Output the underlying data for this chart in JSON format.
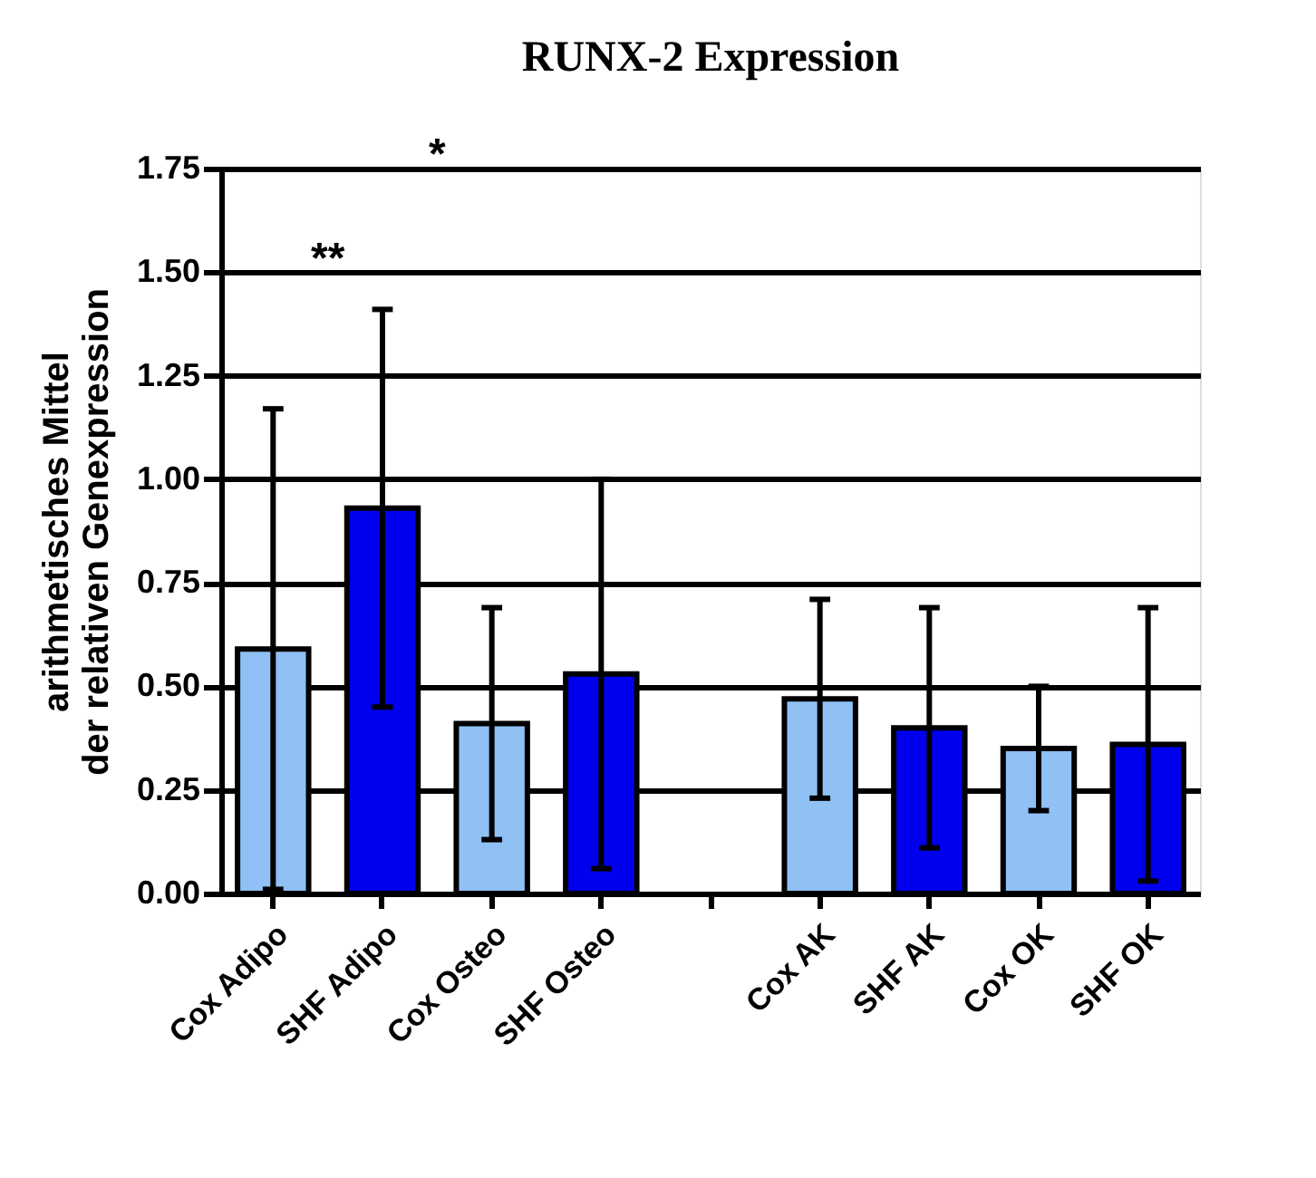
{
  "chart_data": {
    "type": "bar",
    "title": "RUNX-2 Expression",
    "ylabel": "arithmetisches Mittel\nder relativen Genexpression",
    "categories": [
      "Cox Adipo",
      "SHF Adipo",
      "Cox Osteo",
      "SHF Osteo",
      null,
      "Cox AK",
      "SHF AK",
      "Cox OK",
      "SHF OK"
    ],
    "values": [
      0.59,
      0.93,
      0.41,
      0.53,
      null,
      0.47,
      0.4,
      0.35,
      0.36
    ],
    "errors": [
      0.58,
      0.48,
      0.28,
      0.47,
      null,
      0.24,
      0.29,
      0.15,
      0.33
    ],
    "colors": [
      "#90c0f4",
      "#0000ee",
      "#90c0f4",
      "#0000ee",
      "#ffffff",
      "#90c0f4",
      "#0000ee",
      "#90c0f4",
      "#0000ee"
    ],
    "ylim": [
      0,
      1.75
    ],
    "yticks": [
      {
        "value": 0,
        "label": "0.00"
      },
      0.25,
      {
        "value": 0.5,
        "label": "0.50"
      },
      0.75,
      {
        "value": 1,
        "label": "1.00"
      },
      1.25,
      {
        "value": 1.5,
        "label": "1.50"
      },
      1.75
    ],
    "grid": "y",
    "annotations": [
      "*",
      "**"
    ]
  }
}
